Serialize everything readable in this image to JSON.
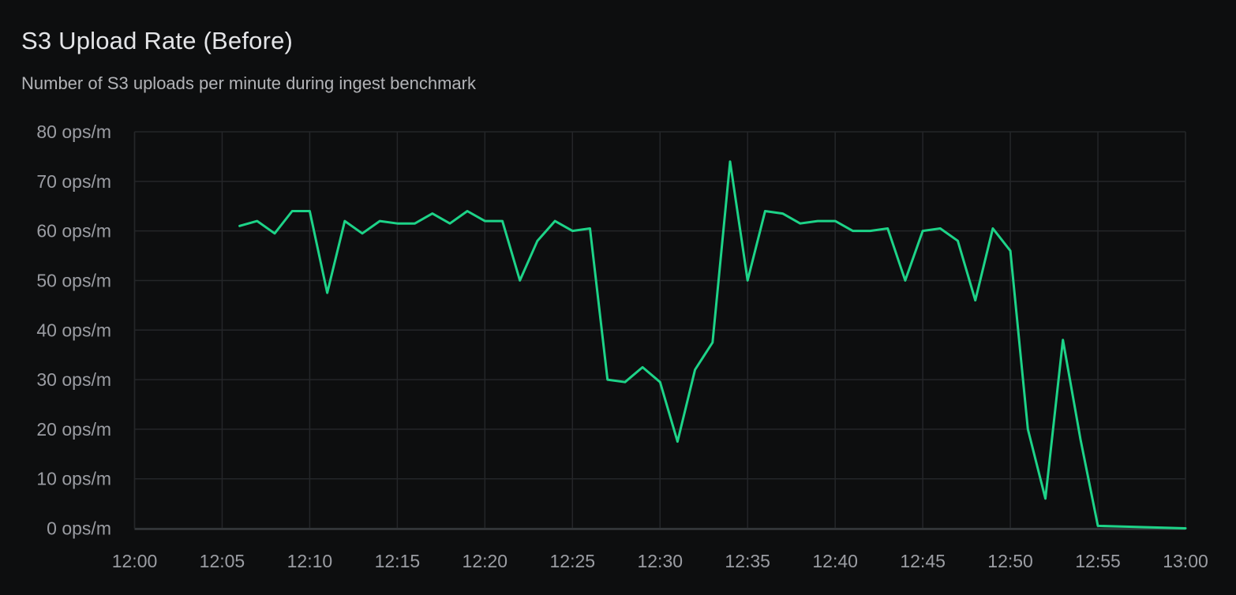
{
  "panel": {
    "title": "S3 Upload Rate (Before)",
    "subtitle": "Number of S3 uploads per minute during ingest benchmark"
  },
  "colors": {
    "background": "#0d0e0f",
    "line": "#1dd388",
    "grid": "#242629",
    "axis_line": "#3a3d41",
    "title_text": "#e4e5e8",
    "subtitle_text": "#b3b4b8",
    "tick_text": "#9b9da3"
  },
  "chart_data": {
    "type": "line",
    "title": "S3 Upload Rate (Before)",
    "subtitle": "Number of S3 uploads per minute during ingest benchmark",
    "xlabel": "",
    "ylabel": "ops/m",
    "ylim": [
      0,
      80
    ],
    "grid": true,
    "legend": "none",
    "x_ticks": [
      "12:00",
      "12:05",
      "12:10",
      "12:15",
      "12:20",
      "12:25",
      "12:30",
      "12:35",
      "12:40",
      "12:45",
      "12:50",
      "12:55",
      "13:00"
    ],
    "y_ticks": [
      "80 ops/m",
      "70 ops/m",
      "60 ops/m",
      "50 ops/m",
      "40 ops/m",
      "30 ops/m",
      "20 ops/m",
      "10 ops/m",
      "0 ops/m"
    ],
    "series": [
      {
        "name": "S3 uploads per minute",
        "color": "#1dd388",
        "times": [
          "12:06",
          "12:07",
          "12:08",
          "12:09",
          "12:10",
          "12:11",
          "12:12",
          "12:13",
          "12:14",
          "12:15",
          "12:16",
          "12:17",
          "12:18",
          "12:19",
          "12:20",
          "12:21",
          "12:22",
          "12:23",
          "12:24",
          "12:25",
          "12:26",
          "12:27",
          "12:28",
          "12:29",
          "12:30",
          "12:31",
          "12:32",
          "12:33",
          "12:34",
          "12:35",
          "12:36",
          "12:37",
          "12:38",
          "12:39",
          "12:40",
          "12:41",
          "12:42",
          "12:43",
          "12:44",
          "12:45",
          "12:46",
          "12:47",
          "12:48",
          "12:49",
          "12:50",
          "12:51",
          "12:52",
          "12:53",
          "12:54",
          "12:55",
          "12:56",
          "12:57",
          "12:58",
          "12:59",
          "13:00"
        ],
        "values": [
          61,
          62,
          59.5,
          64,
          64,
          47.5,
          62,
          59.5,
          62,
          61.5,
          61.5,
          63.5,
          61.5,
          64,
          62,
          62,
          50,
          58,
          62,
          60,
          60.5,
          30,
          29.5,
          32.5,
          29.5,
          17.5,
          32,
          37.5,
          74,
          50,
          64,
          63.5,
          61.5,
          62,
          62,
          60,
          60,
          60.5,
          50,
          60,
          60.5,
          58,
          46,
          60.5,
          56,
          20,
          6,
          38,
          18,
          0.5,
          0.4,
          0.3,
          0.2,
          0.1,
          0
        ]
      }
    ]
  }
}
